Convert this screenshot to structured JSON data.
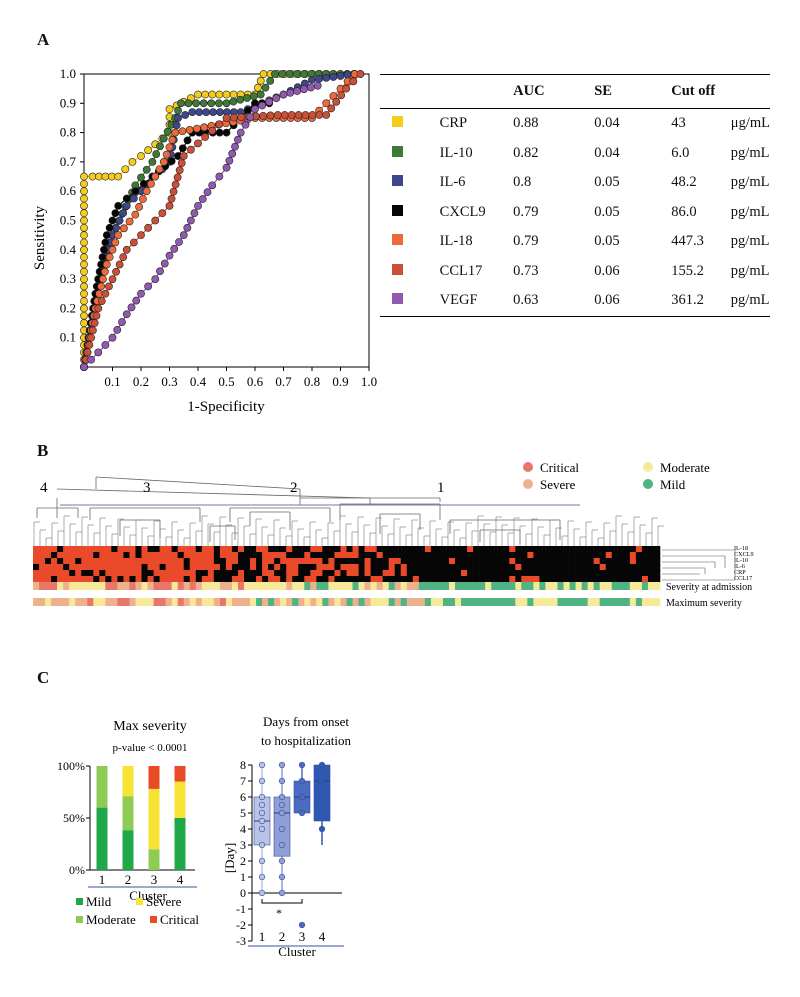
{
  "panels": {
    "a": "A",
    "b": "B",
    "c": "C"
  },
  "roc": {
    "xlabel": "1-Specificity",
    "ylabel": "Sensitivity",
    "x_ticks": [
      "0.1",
      "0.2",
      "0.3",
      "0.4",
      "0.5",
      "0.6",
      "0.7",
      "0.8",
      "0.9",
      "1.0"
    ],
    "y_ticks": [
      "0.1",
      "0.2",
      "0.3",
      "0.4",
      "0.5",
      "0.6",
      "0.7",
      "0.8",
      "0.9",
      "1.0"
    ]
  },
  "roc_table": {
    "headers": [
      "",
      "",
      "AUC",
      "SE",
      "Cut off",
      ""
    ],
    "rows": [
      {
        "color": "#f5cc1b",
        "marker": "CRP",
        "auc": "0.88",
        "se": "0.04",
        "cut": "43",
        "unit": "μg/mL"
      },
      {
        "color": "#3d7a35",
        "marker": "IL-10",
        "auc": "0.82",
        "se": "0.04",
        "cut": "6.0",
        "unit": "pg/mL"
      },
      {
        "color": "#3f4788",
        "marker": "IL-6",
        "auc": "0.8",
        "se": "0.05",
        "cut": "48.2",
        "unit": "pg/mL"
      },
      {
        "color": "#050505",
        "marker": "CXCL9",
        "auc": "0.79",
        "se": "0.05",
        "cut": "86.0",
        "unit": "pg/mL"
      },
      {
        "color": "#ee6a3a",
        "marker": "IL-18",
        "auc": "0.79",
        "se": "0.05",
        "cut": "447.3",
        "unit": "pg/mL"
      },
      {
        "color": "#cc5037",
        "marker": "CCL17",
        "auc": "0.73",
        "se": "0.06",
        "cut": "155.2",
        "unit": "pg/mL"
      },
      {
        "color": "#8f5ab0",
        "marker": "VEGF",
        "auc": "0.63",
        "se": "0.06",
        "cut": "361.2",
        "unit": "pg/mL"
      }
    ]
  },
  "heatmap": {
    "cluster_labels": [
      "4",
      "3",
      "2",
      "1"
    ],
    "legend": [
      {
        "label": "Critical",
        "color": "#e7766b"
      },
      {
        "label": "Severe",
        "color": "#efb08d"
      },
      {
        "label": "Moderate",
        "color": "#f6ea9a"
      },
      {
        "label": "Mild",
        "color": "#4fb383"
      }
    ],
    "row_labels": [
      "IL-18",
      "CXCL9",
      "IL-10",
      "IL-6",
      "CRP",
      "CCL17"
    ],
    "bar_labels": [
      "Severity at admission",
      "Maximum severity"
    ],
    "colors": {
      "high": "#ea4a2a",
      "low": "#060606"
    }
  },
  "max_severity": {
    "title": "Max severity",
    "pvalue": "p-value < 0.0001",
    "y_ticks": [
      "0%",
      "50%",
      "100%"
    ],
    "xlabel": "Cluster",
    "legend": [
      {
        "label": "Mild",
        "color": "#1fa84a"
      },
      {
        "label": "Severe",
        "color": "#f7e334"
      },
      {
        "label": "Moderate",
        "color": "#8dcb55"
      },
      {
        "label": "Critical",
        "color": "#e84b25"
      }
    ]
  },
  "days": {
    "title_line1": "Days from onset",
    "title_line2": "to hospitalization",
    "ylabel": "[Day]",
    "xlabel": "Cluster",
    "y_ticks": [
      "8",
      "7",
      "6",
      "5",
      "4",
      "3",
      "2",
      "1",
      "0",
      "-1",
      "-2",
      "-3"
    ],
    "significance": "*"
  },
  "chart_data": [
    {
      "type": "line",
      "xlabel": "1-Specificity",
      "ylabel": "Sensitivity",
      "xlim": [
        0,
        1
      ],
      "ylim": [
        0,
        1
      ],
      "series": [
        {
          "name": "CRP",
          "color": "#f5cc1b",
          "x": [
            0,
            0,
            0.03,
            0.12,
            0.17,
            0.2,
            0.3,
            0.3,
            0.4,
            0.6,
            0.63,
            0.9,
            0.97
          ],
          "y": [
            0,
            0.65,
            0.65,
            0.65,
            0.7,
            0.72,
            0.8,
            0.88,
            0.93,
            0.93,
            1.0,
            1.0,
            1.0
          ]
        },
        {
          "name": "IL-10",
          "color": "#3d7a35",
          "x": [
            0,
            0.05,
            0.1,
            0.18,
            0.24,
            0.28,
            0.32,
            0.34,
            0.5,
            0.62,
            0.67,
            0.95
          ],
          "y": [
            0,
            0.3,
            0.45,
            0.62,
            0.7,
            0.78,
            0.85,
            0.9,
            0.9,
            0.93,
            1.0,
            1.0
          ]
        },
        {
          "name": "IL-6",
          "color": "#3f4788",
          "x": [
            0,
            0.05,
            0.1,
            0.15,
            0.2,
            0.3,
            0.33,
            0.38,
            0.55,
            0.7,
            0.8,
            0.95
          ],
          "y": [
            0,
            0.25,
            0.45,
            0.55,
            0.6,
            0.7,
            0.85,
            0.87,
            0.87,
            0.93,
            0.98,
            1.0
          ]
        },
        {
          "name": "CXCL9",
          "color": "#050505",
          "x": [
            0,
            0.04,
            0.08,
            0.12,
            0.18,
            0.24,
            0.33,
            0.38,
            0.5,
            0.55,
            0.6,
            0.65
          ],
          "y": [
            0,
            0.25,
            0.45,
            0.55,
            0.6,
            0.65,
            0.72,
            0.8,
            0.8,
            0.85,
            0.9,
            0.9
          ]
        },
        {
          "name": "IL-18",
          "color": "#ee6a3a",
          "x": [
            0,
            0.04,
            0.08,
            0.12,
            0.18,
            0.22,
            0.28,
            0.32,
            0.6,
            0.8,
            0.9,
            0.95
          ],
          "y": [
            0,
            0.2,
            0.35,
            0.45,
            0.52,
            0.6,
            0.7,
            0.8,
            0.85,
            0.85,
            0.95,
            1.0
          ]
        },
        {
          "name": "CCL17",
          "color": "#cc5037",
          "x": [
            0,
            0.05,
            0.1,
            0.15,
            0.2,
            0.25,
            0.3,
            0.35,
            0.5,
            0.68,
            0.85,
            0.92,
            0.97
          ],
          "y": [
            0,
            0.2,
            0.3,
            0.4,
            0.45,
            0.5,
            0.55,
            0.72,
            0.85,
            0.86,
            0.86,
            0.95,
            1.0
          ]
        },
        {
          "name": "VEGF",
          "color": "#8f5ab0",
          "x": [
            0,
            0.1,
            0.15,
            0.2,
            0.25,
            0.3,
            0.35,
            0.4,
            0.45,
            0.5,
            0.55,
            0.6,
            0.7,
            0.82
          ],
          "y": [
            0,
            0.1,
            0.18,
            0.25,
            0.3,
            0.38,
            0.45,
            0.55,
            0.62,
            0.68,
            0.8,
            0.88,
            0.93,
            0.96
          ]
        }
      ]
    },
    {
      "type": "bar",
      "title": "Max severity",
      "xlabel": "Cluster",
      "categories": [
        "1",
        "2",
        "3",
        "4"
      ],
      "ylim": [
        0,
        100
      ],
      "series": [
        {
          "name": "Mild",
          "color": "#1fa84a",
          "values": [
            60,
            38,
            0,
            50
          ]
        },
        {
          "name": "Moderate",
          "color": "#8dcb55",
          "values": [
            40,
            33,
            20,
            0
          ]
        },
        {
          "name": "Severe",
          "color": "#f7e334",
          "values": [
            0,
            29,
            58,
            35
          ]
        },
        {
          "name": "Critical",
          "color": "#e84b25",
          "values": [
            0,
            0,
            22,
            15
          ]
        }
      ]
    },
    {
      "type": "box",
      "title": "Days from onset to hospitalization",
      "xlabel": "Cluster",
      "ylabel": "[Day]",
      "categories": [
        "1",
        "2",
        "3",
        "4"
      ],
      "ylim": [
        -3,
        8
      ],
      "boxes": [
        {
          "color": "#b9c3e6",
          "min": 0,
          "q1": 3,
          "median": 4.5,
          "q3": 6,
          "max": 8,
          "points": [
            8,
            7,
            6,
            5.5,
            5,
            4.5,
            4,
            3,
            2,
            1,
            0
          ]
        },
        {
          "color": "#8e9fd6",
          "min": 0,
          "q1": 2.3,
          "median": 5,
          "q3": 6,
          "max": 8,
          "points": [
            8,
            7,
            6,
            5.5,
            5,
            4,
            3,
            2,
            1,
            0
          ]
        },
        {
          "color": "#4a6cc0",
          "min": 5,
          "q1": 5,
          "median": 6,
          "q3": 7,
          "max": 8,
          "points": [
            8,
            7,
            6,
            6,
            5,
            -2
          ]
        },
        {
          "color": "#2e58b2",
          "min": 3,
          "q1": 4.5,
          "median": 7,
          "q3": 8,
          "max": 8,
          "points": [
            8,
            7,
            6,
            5,
            4
          ]
        }
      ]
    }
  ]
}
